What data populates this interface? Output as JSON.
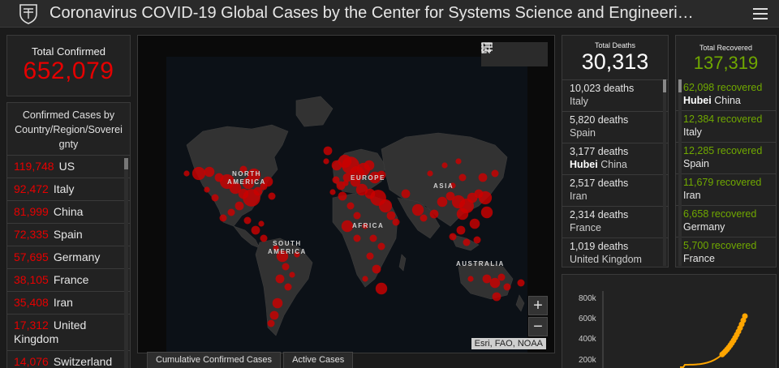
{
  "header": {
    "title": "Coronavirus COVID-19 Global Cases by the Center for Systems Science and Engineeri…",
    "logo_icon": "university-shield-icon",
    "menu_icon": "hamburger-menu-icon"
  },
  "total_confirmed": {
    "label": "Total Confirmed",
    "value": "652,079"
  },
  "confirmed_list": {
    "header": "Confirmed Cases by Country/Region/Sovereignty",
    "header_lines": [
      "Confirmed Cases by",
      "Country/Region/Soverei",
      "gnty"
    ],
    "rows": [
      {
        "count": "119,748",
        "country": "US"
      },
      {
        "count": "92,472",
        "country": "Italy"
      },
      {
        "count": "81,999",
        "country": "China"
      },
      {
        "count": "72,335",
        "country": "Spain"
      },
      {
        "count": "57,695",
        "country": "Germany"
      },
      {
        "count": "38,105",
        "country": "France"
      },
      {
        "count": "35,408",
        "country": "Iran"
      },
      {
        "count": "17,312",
        "country": "United Kingdom"
      },
      {
        "count": "14,076",
        "country": "Switzerland"
      }
    ]
  },
  "map": {
    "tools": [
      "bookmark-icon",
      "list-icon",
      "qr-icon"
    ],
    "labels": [
      "NORTH AMERICA",
      "EUROPE",
      "ASIA",
      "AFRICA",
      "SOUTH AMERICA",
      "AUSTRALIA"
    ],
    "zoom_in": "+",
    "zoom_out": "−",
    "attribution": "Esri, FAO, NOAA",
    "bubble_color": "#e60000"
  },
  "tabs": [
    {
      "label": "Cumulative Confirmed Cases",
      "active": true
    },
    {
      "label": "Active Cases",
      "active": false
    }
  ],
  "total_deaths": {
    "label": "Total Deaths",
    "value": "30,313",
    "items": [
      {
        "num": "10,023 deaths",
        "loc": "Italy",
        "bold": ""
      },
      {
        "num": "5,820 deaths",
        "loc": "Spain",
        "bold": ""
      },
      {
        "num": "3,177 deaths",
        "loc": "China",
        "bold": "Hubei"
      },
      {
        "num": "2,517 deaths",
        "loc": "Iran",
        "bold": ""
      },
      {
        "num": "2,314 deaths",
        "loc": "France",
        "bold": ""
      },
      {
        "num": "1,019 deaths",
        "loc": "United Kingdom",
        "bold": ""
      }
    ]
  },
  "total_recovered": {
    "label": "Total Recovered",
    "value": "137,319",
    "items": [
      {
        "num": "62,098 recovered",
        "loc": "China",
        "bold": "Hubei"
      },
      {
        "num": "12,384 recovered",
        "loc": "Italy",
        "bold": ""
      },
      {
        "num": "12,285 recovered",
        "loc": "Spain",
        "bold": ""
      },
      {
        "num": "11,679 recovered",
        "loc": "Iran",
        "bold": ""
      },
      {
        "num": "6,658 recovered",
        "loc": "Germany",
        "bold": ""
      },
      {
        "num": "5,700 recovered",
        "loc": "France",
        "bold": ""
      }
    ]
  },
  "chart": {
    "yticks": [
      "800k",
      "600k",
      "400k",
      "200k"
    ],
    "line_color": "#ffa500"
  }
}
